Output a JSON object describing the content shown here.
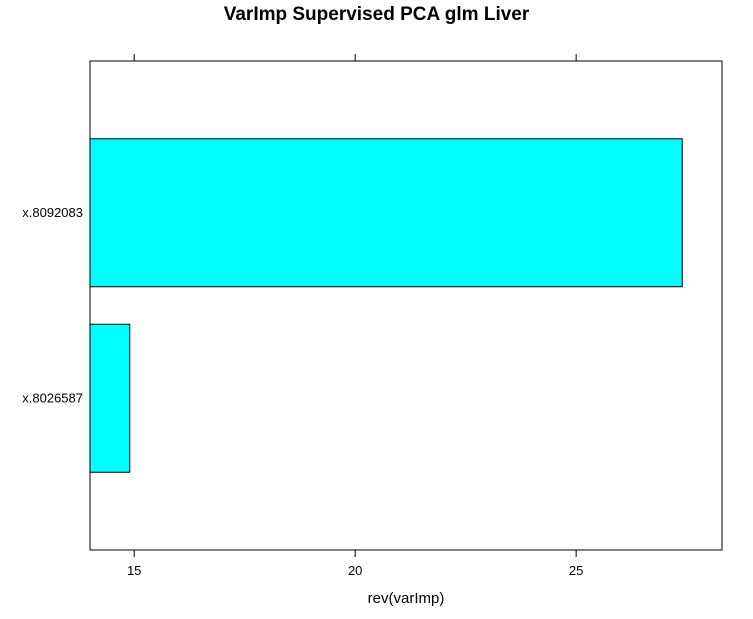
{
  "chart_data": {
    "type": "bar",
    "orientation": "horizontal",
    "title": "VarImp Supervised PCA glm Liver",
    "xlabel": "rev(varImp)",
    "ylabel": "",
    "categories": [
      "x.8092083",
      "x.8026587"
    ],
    "values": [
      27.4,
      14.9
    ],
    "xlim": [
      14.0,
      28.3
    ],
    "xticks": [
      "15",
      "20",
      "25"
    ],
    "grid": false,
    "legend": "none",
    "bar_color": "#00ffff",
    "bar_stroke": "#000000"
  }
}
